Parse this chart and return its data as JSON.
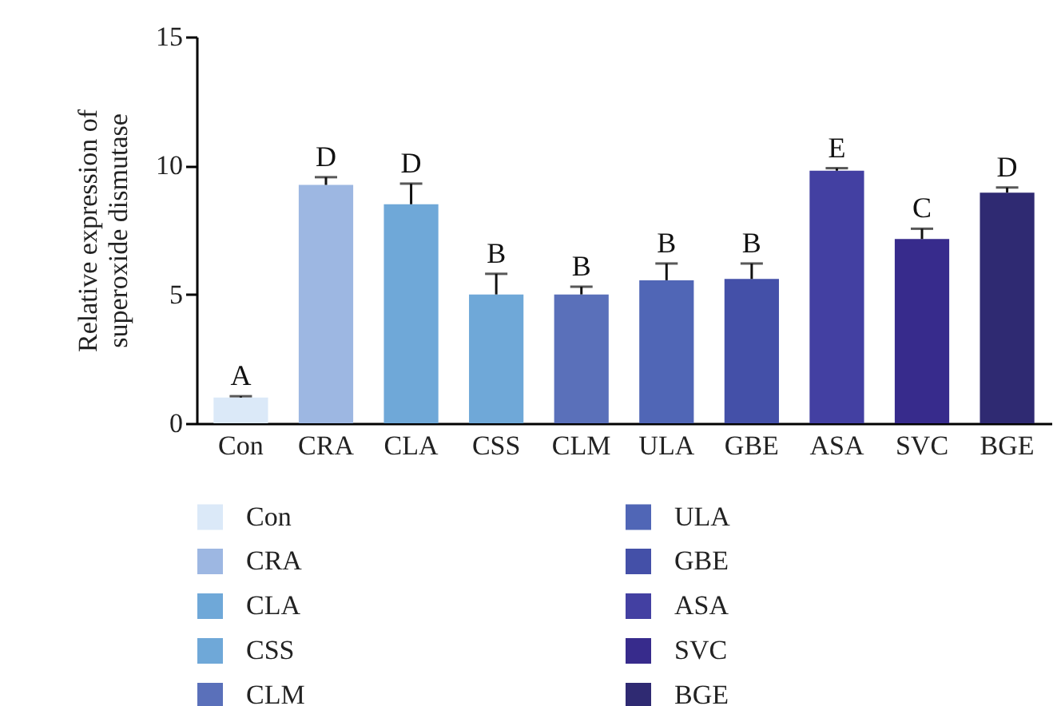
{
  "chart_data": {
    "type": "bar",
    "ylabel": "Relative expression of superoxide dismutase",
    "stacked": true,
    "categories": [
      "Con",
      "CRA",
      "CLA",
      "CSS",
      "CLM",
      "ULA",
      "GBE",
      "ASA",
      "SVC",
      "BGE"
    ],
    "series": [
      {
        "name": "Con",
        "color": "#dbe9f8",
        "values": [
          1.0,
          null,
          null,
          null,
          null,
          null,
          null,
          null,
          null,
          null
        ],
        "errors": [
          [
            1.0,
            1.05
          ],
          null,
          null,
          null,
          null,
          null,
          null,
          null,
          null,
          null
        ]
      },
      {
        "name": "CRA",
        "color": "#9db7e2",
        "values": [
          null,
          9.25,
          null,
          null,
          null,
          null,
          null,
          null,
          null,
          null
        ],
        "errors": [
          null,
          [
            9.25,
            9.55
          ],
          null,
          null,
          null,
          null,
          null,
          null,
          null,
          null
        ]
      },
      {
        "name": "CLA",
        "color": "#6fa8d8",
        "values": [
          null,
          null,
          8.5,
          null,
          null,
          null,
          null,
          null,
          null,
          null
        ],
        "errors": [
          null,
          null,
          [
            8.5,
            9.3
          ],
          null,
          null,
          null,
          null,
          null,
          null,
          null
        ]
      },
      {
        "name": "CSS",
        "color": "#6fa8d8",
        "values": [
          null,
          null,
          null,
          5.0,
          null,
          null,
          null,
          null,
          null,
          null
        ],
        "errors": [
          null,
          null,
          null,
          [
            5.0,
            5.8
          ],
          null,
          null,
          null,
          null,
          null,
          null
        ]
      },
      {
        "name": "CLM",
        "color": "#5a70ba",
        "values": [
          null,
          null,
          null,
          null,
          5.0,
          null,
          null,
          null,
          null,
          null
        ],
        "errors": [
          null,
          null,
          null,
          null,
          [
            5.0,
            5.3
          ],
          null,
          null,
          null,
          null,
          null
        ]
      },
      {
        "name": "ULA",
        "color": "#5066b6",
        "values": [
          null,
          null,
          null,
          null,
          null,
          5.55,
          null,
          null,
          null,
          null
        ],
        "errors": [
          null,
          null,
          null,
          null,
          null,
          [
            5.55,
            6.2
          ],
          null,
          null,
          null,
          null
        ]
      },
      {
        "name": "GBE",
        "color": "#4450a8",
        "values": [
          null,
          null,
          null,
          null,
          null,
          null,
          5.6,
          null,
          null,
          null
        ],
        "errors": [
          null,
          null,
          null,
          null,
          null,
          null,
          [
            5.6,
            6.2
          ],
          null,
          null,
          null
        ]
      },
      {
        "name": "ASA",
        "color": "#4340a2",
        "values": [
          null,
          null,
          null,
          null,
          null,
          null,
          null,
          9.8,
          null,
          null
        ],
        "errors": [
          null,
          null,
          null,
          null,
          null,
          null,
          null,
          [
            9.8,
            9.9
          ],
          null,
          null
        ]
      },
      {
        "name": "SVC",
        "color": "#372b8c",
        "values": [
          null,
          null,
          null,
          null,
          null,
          null,
          null,
          null,
          7.15,
          null
        ],
        "errors": [
          null,
          null,
          null,
          null,
          null,
          null,
          null,
          null,
          [
            7.15,
            7.55
          ],
          null
        ]
      },
      {
        "name": "BGE",
        "color": "#2f2a72",
        "values": [
          null,
          null,
          null,
          null,
          null,
          null,
          null,
          null,
          null,
          8.95
        ],
        "errors": [
          null,
          null,
          null,
          null,
          null,
          null,
          null,
          null,
          null,
          [
            8.95,
            9.15
          ]
        ]
      }
    ],
    "ylim": [
      0,
      15
    ],
    "yticks": [
      0,
      5,
      10,
      15
    ],
    "grid": false,
    "legend": "bottom left",
    "annotations": [
      {
        "text": "A",
        "x": "Con",
        "y": 1.05
      },
      {
        "text": "D",
        "x": "CRA",
        "y": 9.55
      },
      {
        "text": "D",
        "x": "CLA",
        "y": 9.3
      },
      {
        "text": "B",
        "x": "CSS",
        "y": 5.8
      },
      {
        "text": "B",
        "x": "CLM",
        "y": 5.3
      },
      {
        "text": "B",
        "x": "ULA",
        "y": 6.2
      },
      {
        "text": "B",
        "x": "GBE",
        "y": 6.2
      },
      {
        "text": "E",
        "x": "ASA",
        "y": 9.9
      },
      {
        "text": "C",
        "x": "SVC",
        "y": 7.55
      },
      {
        "text": "D",
        "x": "BGE",
        "y": 9.15
      }
    ]
  }
}
